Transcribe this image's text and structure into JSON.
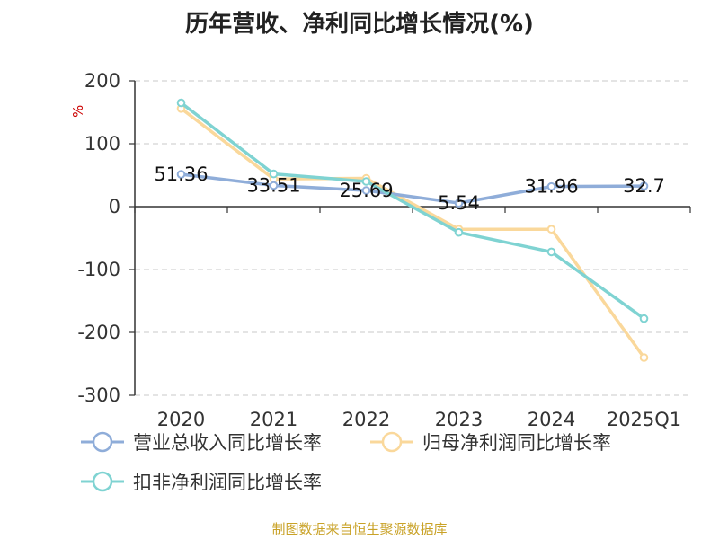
{
  "chart_data": {
    "type": "line",
    "title": "历年营收、净利同比增长情况(%)",
    "ylabel": "%",
    "categories": [
      "2020",
      "2021",
      "2022",
      "2023",
      "2024",
      "2025Q1"
    ],
    "ylim": [
      -300,
      200
    ],
    "yticks": [
      200,
      100,
      0,
      -100,
      -200,
      -300
    ],
    "grid": true,
    "legend_position": "bottom",
    "series": [
      {
        "name": "营业总收入同比增长率",
        "values": [
          51.36,
          33.51,
          25.69,
          5.54,
          31.96,
          32.7
        ],
        "data_labels": [
          "51.36",
          "33.51",
          "25.69",
          "5.54",
          "31.96",
          "32.7"
        ],
        "color": "#8fadd9"
      },
      {
        "name": "归母净利润同比增长率",
        "values": [
          156,
          44,
          45,
          -36,
          -36,
          -240
        ],
        "color": "#fad89b"
      },
      {
        "name": "扣非净利润同比增长率",
        "values": [
          165,
          52,
          40,
          -41,
          -72,
          -178
        ],
        "color": "#7fd3d2"
      }
    ]
  },
  "source": "制图数据来自恒生聚源数据库"
}
